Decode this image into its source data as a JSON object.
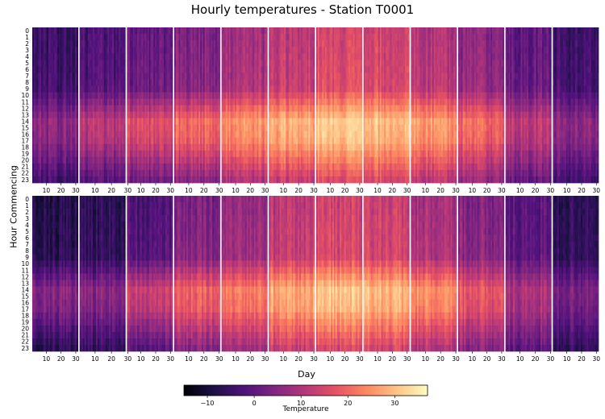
{
  "chart_data": {
    "type": "heatmap",
    "title": "Hourly temperatures - Station T0001",
    "xlabel": "Day",
    "ylabel": "Hour Commencing",
    "hour_tick_labels": [
      "0",
      "1",
      "2",
      "3",
      "4",
      "5",
      "6",
      "7",
      "8",
      "9",
      "10",
      "11",
      "12",
      "13",
      "14",
      "15",
      "16",
      "17",
      "18",
      "19",
      "20",
      "21",
      "22",
      "23"
    ],
    "day_tick_labels": [
      "10",
      "20",
      "30"
    ],
    "colormap": "magma",
    "colorbar": {
      "label": "Temperature",
      "range": [
        -15,
        37
      ],
      "ticks": [
        -10,
        0,
        10,
        20,
        30
      ],
      "tick_labels": [
        "−10",
        "0",
        "10",
        "20",
        "30"
      ],
      "stops": [
        "#000004",
        "#1d1147",
        "#51127c",
        "#822681",
        "#b73779",
        "#e75263",
        "#fc8961",
        "#fec488",
        "#fcfdbf"
      ]
    },
    "years": [
      {
        "months": [
          {
            "days": 31,
            "night": -5,
            "noon": 6
          },
          {
            "days": 28,
            "night": -3,
            "noon": 11
          },
          {
            "days": 31,
            "night": 0,
            "noon": 16
          },
          {
            "days": 30,
            "night": 4,
            "noon": 21
          },
          {
            "days": 31,
            "night": 8,
            "noon": 25
          },
          {
            "days": 30,
            "night": 12,
            "noon": 29
          },
          {
            "days": 31,
            "night": 15,
            "noon": 32
          },
          {
            "days": 31,
            "night": 14,
            "noon": 30
          },
          {
            "days": 30,
            "night": 10,
            "noon": 26
          },
          {
            "days": 31,
            "night": 5,
            "noon": 20
          },
          {
            "days": 30,
            "night": 0,
            "noon": 12
          },
          {
            "days": 31,
            "night": -4,
            "noon": 6
          }
        ]
      },
      {
        "months": [
          {
            "days": 31,
            "night": -8,
            "noon": 5
          },
          {
            "days": 28,
            "night": -7,
            "noon": 5
          },
          {
            "days": 31,
            "night": -2,
            "noon": 14
          },
          {
            "days": 30,
            "night": 3,
            "noon": 19
          },
          {
            "days": 31,
            "night": 7,
            "noon": 23
          },
          {
            "days": 30,
            "night": 11,
            "noon": 27
          },
          {
            "days": 31,
            "night": 14,
            "noon": 31
          },
          {
            "days": 31,
            "night": 13,
            "noon": 29
          },
          {
            "days": 30,
            "night": 9,
            "noon": 25
          },
          {
            "days": 31,
            "night": 4,
            "noon": 18
          },
          {
            "days": 30,
            "night": -1,
            "noon": 10
          },
          {
            "days": 31,
            "night": -6,
            "noon": 4
          }
        ]
      }
    ]
  }
}
